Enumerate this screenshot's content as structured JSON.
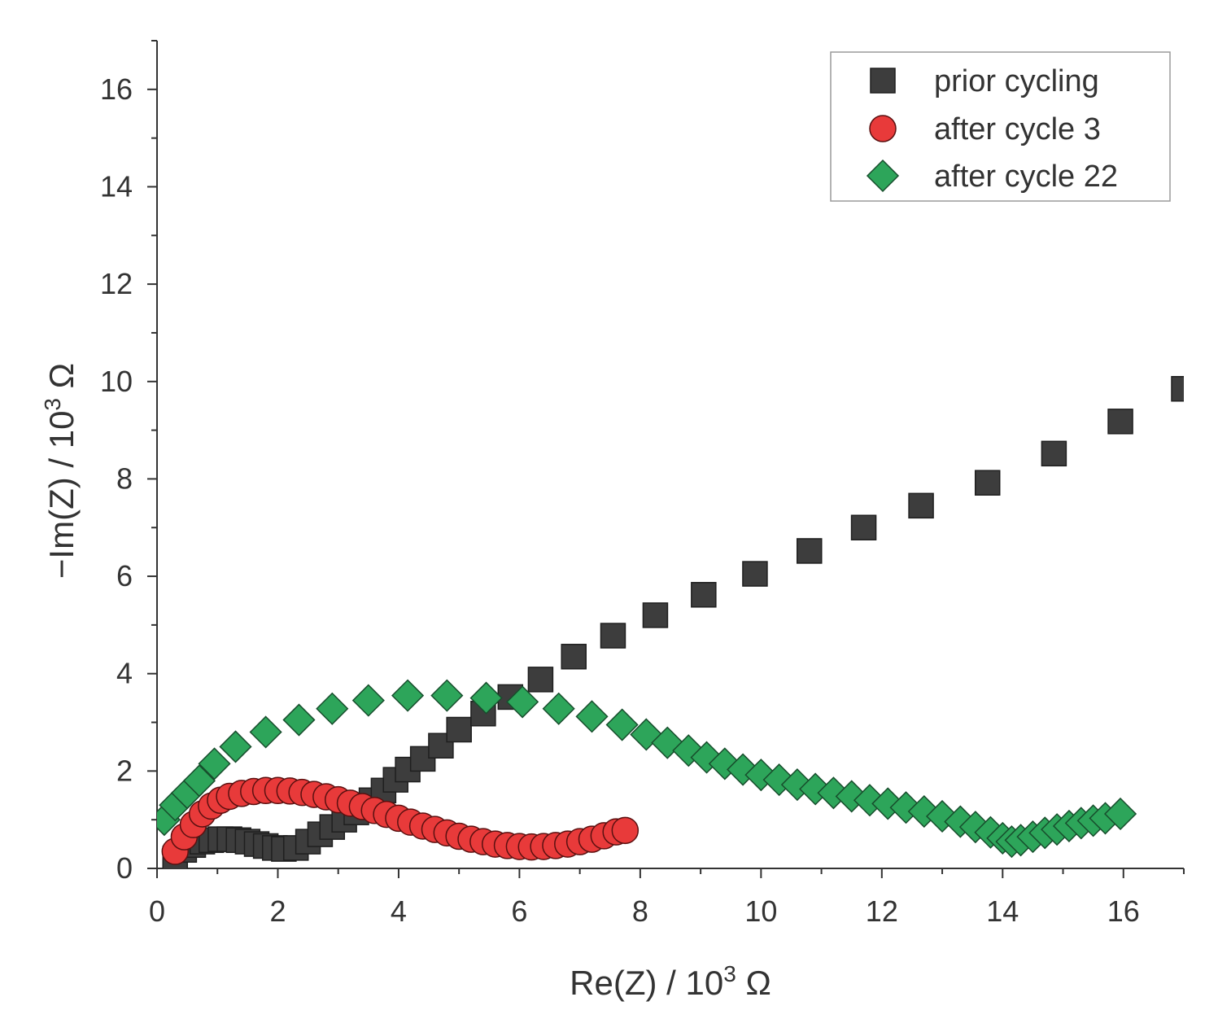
{
  "chart_data": {
    "type": "scatter",
    "xlabel": "Re(Z) / 10",
    "xlabel_exp": "3",
    "xlabel_unit": "Ω",
    "ylabel": "−Im(Z) / 10",
    "ylabel_exp": "3",
    "ylabel_unit": "Ω",
    "xlim": [
      0,
      17
    ],
    "ylim": [
      0,
      17
    ],
    "x_ticks": [
      "0",
      "2",
      "4",
      "6",
      "8",
      "10",
      "12",
      "14",
      "16"
    ],
    "y_ticks": [
      "0",
      "2",
      "4",
      "6",
      "8",
      "10",
      "12",
      "14",
      "16"
    ],
    "legend_position": "top-right",
    "series": [
      {
        "name": "prior cycling",
        "marker": "square",
        "color": "#3d3d3d",
        "points": [
          [
            0.3,
            0.2
          ],
          [
            0.45,
            0.38
          ],
          [
            0.6,
            0.48
          ],
          [
            0.75,
            0.55
          ],
          [
            0.9,
            0.58
          ],
          [
            1.05,
            0.6
          ],
          [
            1.2,
            0.6
          ],
          [
            1.35,
            0.58
          ],
          [
            1.5,
            0.55
          ],
          [
            1.65,
            0.5
          ],
          [
            1.8,
            0.46
          ],
          [
            1.95,
            0.42
          ],
          [
            2.1,
            0.4
          ],
          [
            2.3,
            0.42
          ],
          [
            2.5,
            0.55
          ],
          [
            2.7,
            0.7
          ],
          [
            2.9,
            0.85
          ],
          [
            3.1,
            1.0
          ],
          [
            3.3,
            1.15
          ],
          [
            3.55,
            1.4
          ],
          [
            3.75,
            1.6
          ],
          [
            3.95,
            1.82
          ],
          [
            4.15,
            2.03
          ],
          [
            4.4,
            2.25
          ],
          [
            4.7,
            2.52
          ],
          [
            5.0,
            2.85
          ],
          [
            5.4,
            3.18
          ],
          [
            5.85,
            3.52
          ],
          [
            6.35,
            3.88
          ],
          [
            6.9,
            4.35
          ],
          [
            7.55,
            4.78
          ],
          [
            8.25,
            5.2
          ],
          [
            9.05,
            5.62
          ],
          [
            9.9,
            6.05
          ],
          [
            10.8,
            6.52
          ],
          [
            11.7,
            7.0
          ],
          [
            12.65,
            7.45
          ],
          [
            13.75,
            7.92
          ],
          [
            14.85,
            8.52
          ],
          [
            15.95,
            9.18
          ],
          [
            17.0,
            9.85
          ]
        ]
      },
      {
        "name": "after cycle 3",
        "marker": "circle",
        "color": "#e83a3a",
        "points": [
          [
            0.3,
            0.35
          ],
          [
            0.45,
            0.65
          ],
          [
            0.6,
            0.9
          ],
          [
            0.75,
            1.12
          ],
          [
            0.9,
            1.28
          ],
          [
            1.05,
            1.4
          ],
          [
            1.2,
            1.48
          ],
          [
            1.4,
            1.54
          ],
          [
            1.6,
            1.58
          ],
          [
            1.8,
            1.6
          ],
          [
            2.0,
            1.6
          ],
          [
            2.2,
            1.59
          ],
          [
            2.4,
            1.56
          ],
          [
            2.6,
            1.52
          ],
          [
            2.8,
            1.47
          ],
          [
            3.0,
            1.41
          ],
          [
            3.2,
            1.34
          ],
          [
            3.4,
            1.27
          ],
          [
            3.6,
            1.19
          ],
          [
            3.8,
            1.11
          ],
          [
            4.0,
            1.03
          ],
          [
            4.2,
            0.95
          ],
          [
            4.4,
            0.87
          ],
          [
            4.6,
            0.8
          ],
          [
            4.8,
            0.73
          ],
          [
            5.0,
            0.66
          ],
          [
            5.2,
            0.6
          ],
          [
            5.4,
            0.55
          ],
          [
            5.6,
            0.5
          ],
          [
            5.8,
            0.47
          ],
          [
            6.0,
            0.45
          ],
          [
            6.2,
            0.44
          ],
          [
            6.4,
            0.45
          ],
          [
            6.6,
            0.47
          ],
          [
            6.8,
            0.5
          ],
          [
            7.0,
            0.55
          ],
          [
            7.2,
            0.6
          ],
          [
            7.4,
            0.67
          ],
          [
            7.6,
            0.75
          ],
          [
            7.75,
            0.78
          ]
        ]
      },
      {
        "name": "after cycle 22",
        "marker": "diamond",
        "color": "#2da55a",
        "points": [
          [
            0.12,
            1.0
          ],
          [
            0.3,
            1.3
          ],
          [
            0.5,
            1.55
          ],
          [
            0.7,
            1.8
          ],
          [
            0.95,
            2.15
          ],
          [
            1.3,
            2.5
          ],
          [
            1.8,
            2.8
          ],
          [
            2.35,
            3.05
          ],
          [
            2.9,
            3.28
          ],
          [
            3.5,
            3.45
          ],
          [
            4.15,
            3.55
          ],
          [
            4.8,
            3.55
          ],
          [
            5.45,
            3.5
          ],
          [
            6.05,
            3.42
          ],
          [
            6.65,
            3.28
          ],
          [
            7.2,
            3.12
          ],
          [
            7.7,
            2.95
          ],
          [
            8.1,
            2.75
          ],
          [
            8.45,
            2.58
          ],
          [
            8.8,
            2.42
          ],
          [
            9.1,
            2.28
          ],
          [
            9.4,
            2.15
          ],
          [
            9.7,
            2.03
          ],
          [
            10.0,
            1.92
          ],
          [
            10.3,
            1.82
          ],
          [
            10.6,
            1.72
          ],
          [
            10.9,
            1.63
          ],
          [
            11.2,
            1.55
          ],
          [
            11.5,
            1.48
          ],
          [
            11.8,
            1.4
          ],
          [
            12.1,
            1.33
          ],
          [
            12.4,
            1.25
          ],
          [
            12.7,
            1.17
          ],
          [
            13.0,
            1.07
          ],
          [
            13.3,
            0.96
          ],
          [
            13.55,
            0.85
          ],
          [
            13.8,
            0.74
          ],
          [
            14.0,
            0.62
          ],
          [
            14.15,
            0.55
          ],
          [
            14.3,
            0.58
          ],
          [
            14.5,
            0.65
          ],
          [
            14.7,
            0.73
          ],
          [
            14.9,
            0.8
          ],
          [
            15.1,
            0.87
          ],
          [
            15.3,
            0.93
          ],
          [
            15.5,
            0.98
          ],
          [
            15.7,
            1.03
          ],
          [
            15.95,
            1.12
          ]
        ]
      }
    ]
  }
}
